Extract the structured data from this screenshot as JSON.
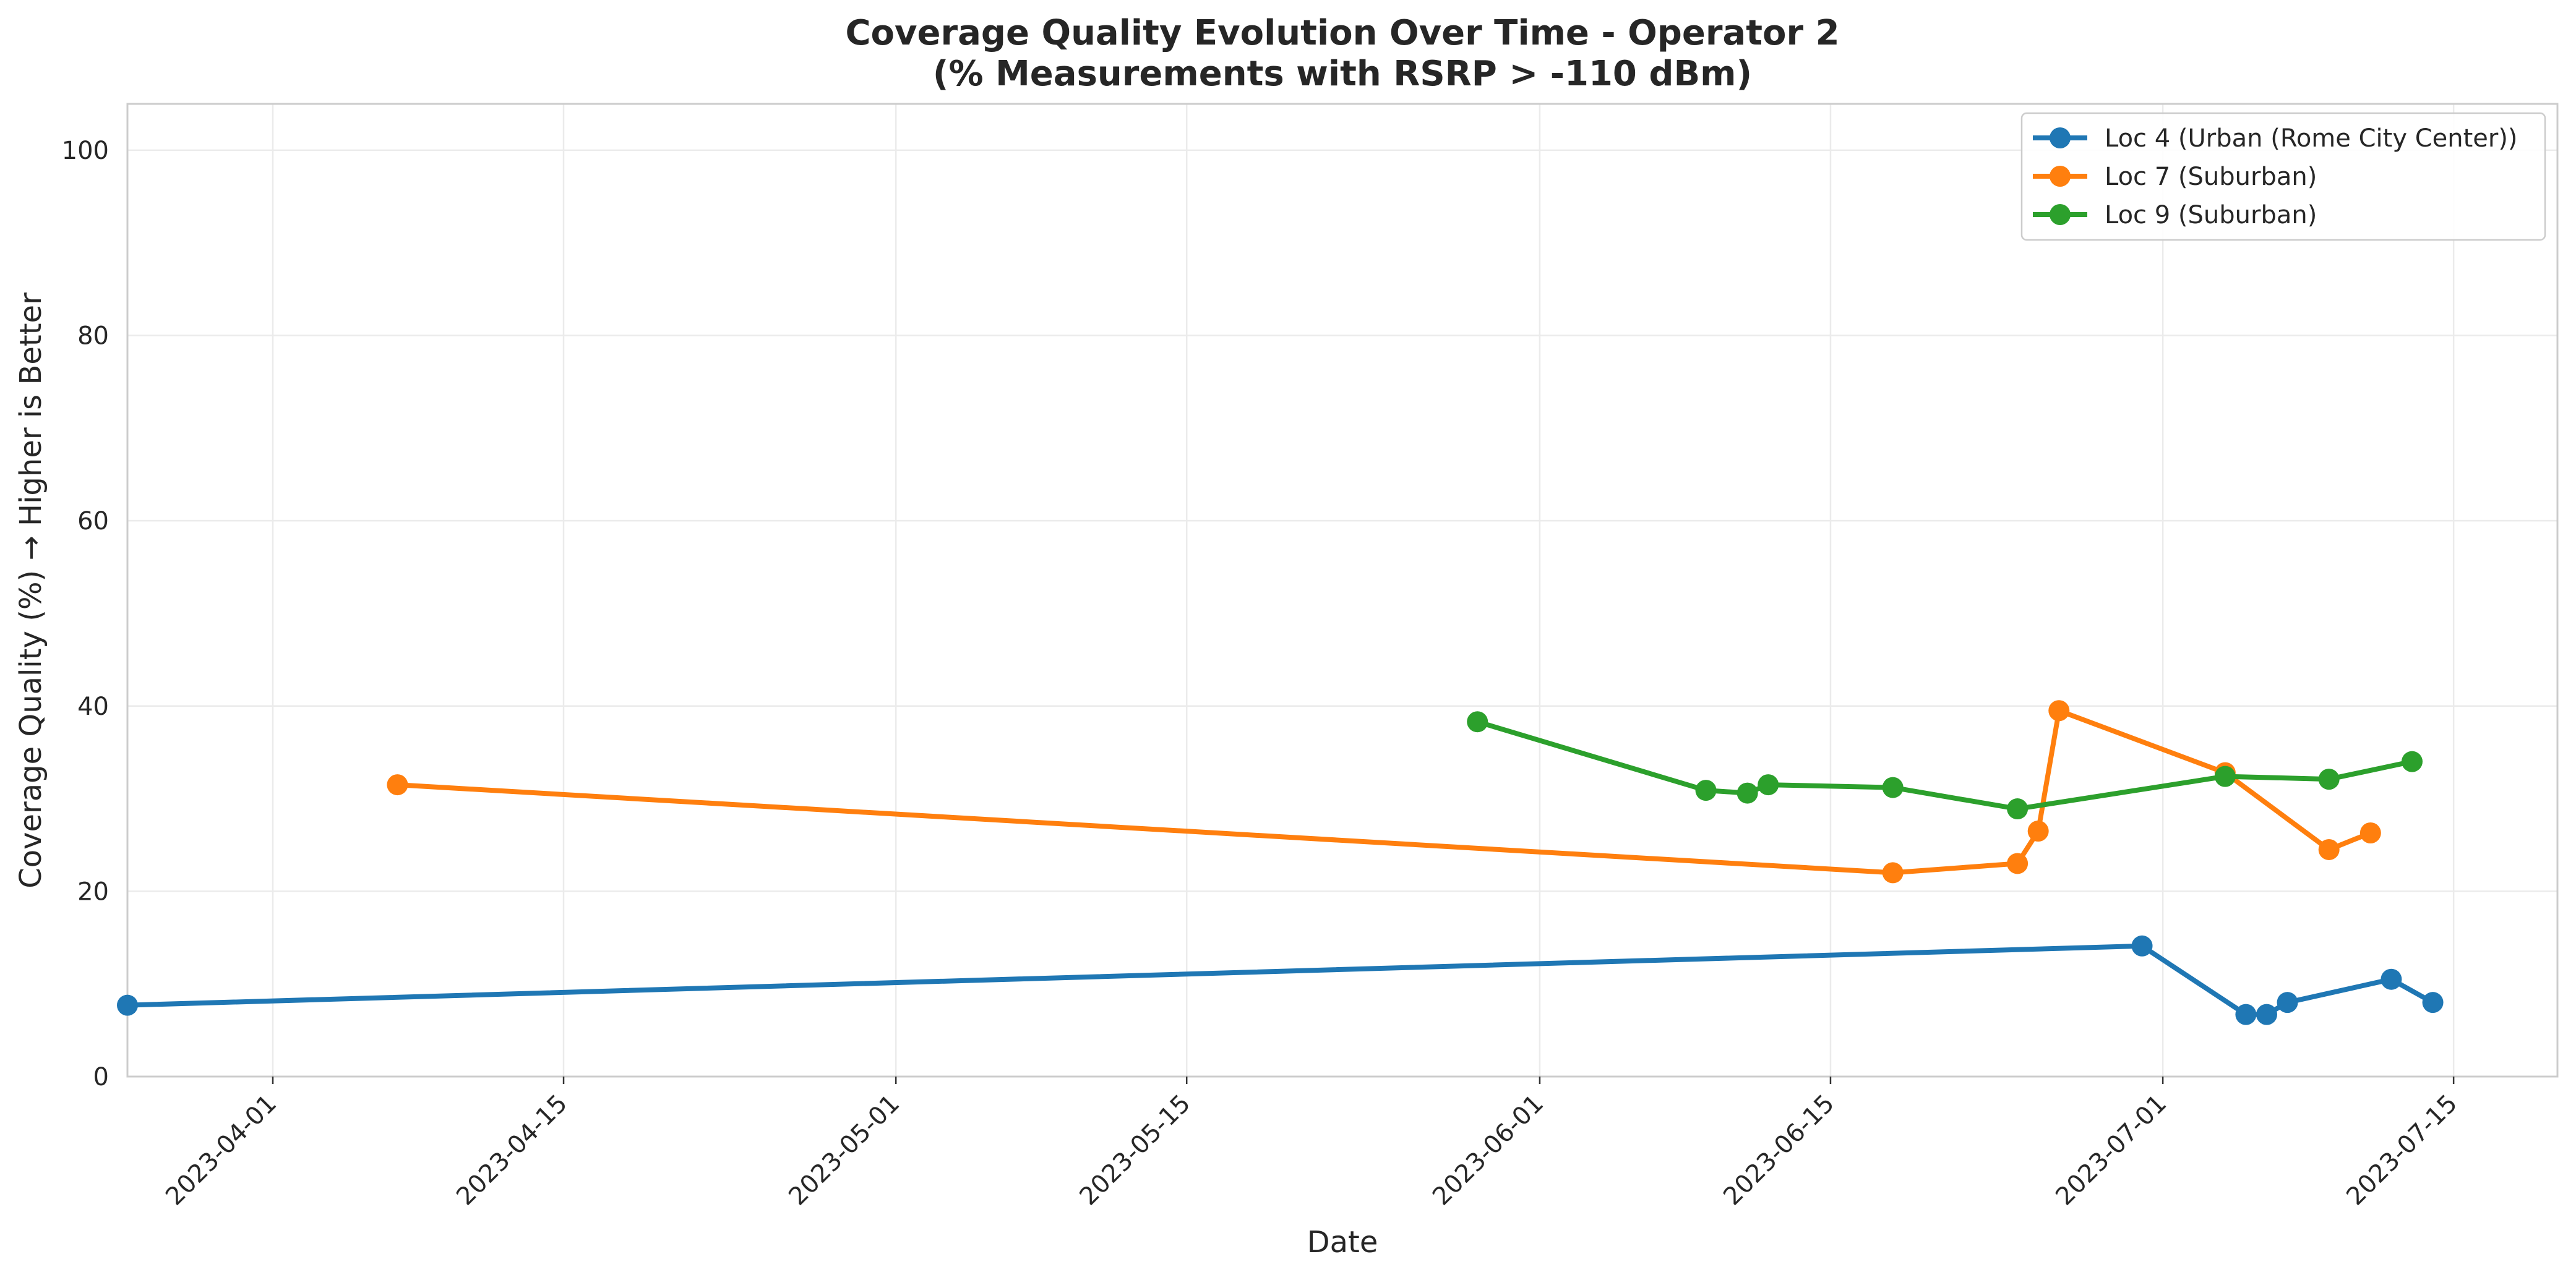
{
  "chart_data": {
    "type": "line",
    "title_lines": [
      "Coverage Quality Evolution Over Time - Operator 2",
      "(% Measurements with RSRP > -110 dBm)"
    ],
    "xlabel": "Date",
    "ylabel": "Coverage Quality (%) → Higher is Better",
    "xlim": [
      "2023-03-25",
      "2023-07-20"
    ],
    "ylim": [
      0,
      105
    ],
    "x_ticks": [
      "2023-04-01",
      "2023-04-15",
      "2023-05-01",
      "2023-05-15",
      "2023-06-01",
      "2023-06-15",
      "2023-07-01",
      "2023-07-15"
    ],
    "y_ticks": [
      0,
      20,
      40,
      60,
      80,
      100
    ],
    "grid": true,
    "legend_position": "top-right",
    "series": [
      {
        "name": "Loc 4 (Urban (Rome City Center))",
        "color": "#1f77b4",
        "points": [
          {
            "x": "2023-03-25",
            "y": 7.7
          },
          {
            "x": "2023-06-30",
            "y": 14.1
          },
          {
            "x": "2023-07-05",
            "y": 6.7
          },
          {
            "x": "2023-07-06",
            "y": 6.7
          },
          {
            "x": "2023-07-07",
            "y": 8.0
          },
          {
            "x": "2023-07-12",
            "y": 10.5
          },
          {
            "x": "2023-07-14",
            "y": 8.0
          }
        ]
      },
      {
        "name": "Loc 7 (Suburban)",
        "color": "#ff7f0e",
        "points": [
          {
            "x": "2023-04-07",
            "y": 31.5
          },
          {
            "x": "2023-06-18",
            "y": 22.0
          },
          {
            "x": "2023-06-24",
            "y": 23.0
          },
          {
            "x": "2023-06-25",
            "y": 26.5
          },
          {
            "x": "2023-06-26",
            "y": 39.5
          },
          {
            "x": "2023-07-04",
            "y": 32.8
          },
          {
            "x": "2023-07-09",
            "y": 24.5
          },
          {
            "x": "2023-07-11",
            "y": 26.3
          }
        ]
      },
      {
        "name": "Loc 9 (Suburban)",
        "color": "#2ca02c",
        "points": [
          {
            "x": "2023-05-29",
            "y": 38.3
          },
          {
            "x": "2023-06-09",
            "y": 30.9
          },
          {
            "x": "2023-06-11",
            "y": 30.6
          },
          {
            "x": "2023-06-12",
            "y": 31.5
          },
          {
            "x": "2023-06-18",
            "y": 31.2
          },
          {
            "x": "2023-06-24",
            "y": 28.9
          },
          {
            "x": "2023-07-04",
            "y": 32.4
          },
          {
            "x": "2023-07-09",
            "y": 32.1
          },
          {
            "x": "2023-07-13",
            "y": 34.0
          }
        ]
      }
    ]
  }
}
